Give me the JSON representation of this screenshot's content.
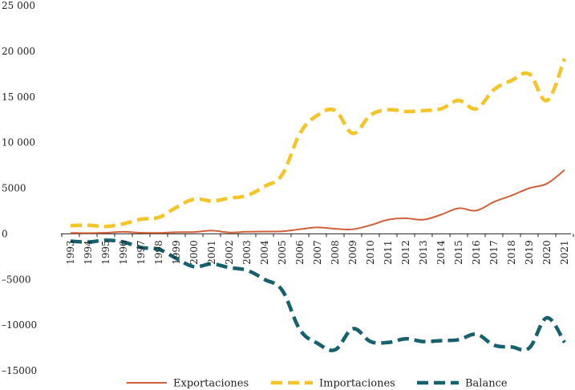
{
  "chart_data": {
    "type": "line",
    "title": "",
    "xlabel": "",
    "ylabel": "",
    "ylim": [
      -15000,
      25000
    ],
    "y_ticks": [
      -15000,
      -10000,
      -5000,
      0,
      5000,
      10000,
      15000,
      20000,
      25000
    ],
    "y_tick_labels": [
      "–15000",
      "–10000",
      "–5000",
      "0",
      "5000",
      "10 000",
      "15 000",
      "20 000",
      "25 000"
    ],
    "categories": [
      "1993",
      "1994",
      "1995",
      "1996",
      "1997",
      "1998",
      "1999",
      "2000",
      "2001",
      "2002",
      "2003",
      "2004",
      "2005",
      "2006",
      "2007",
      "2008",
      "2009",
      "2010",
      "2011",
      "2012",
      "2013",
      "2014",
      "2015",
      "2016",
      "2017",
      "2018",
      "2019",
      "2020",
      "2021"
    ],
    "legend_position": "bottom",
    "grid": false,
    "series": [
      {
        "name": "Exportaciones",
        "color": "#d0603a",
        "style": "solid",
        "values": [
          100,
          80,
          120,
          220,
          120,
          100,
          180,
          200,
          350,
          150,
          230,
          250,
          280,
          500,
          700,
          550,
          500,
          950,
          1550,
          1700,
          1550,
          2100,
          2800,
          2550,
          3500,
          4200,
          5000,
          5500,
          7000
        ]
      },
      {
        "name": "Importaciones",
        "color": "#f5c428",
        "style": "dashed",
        "values": [
          900,
          950,
          800,
          1100,
          1600,
          1800,
          2900,
          3800,
          3600,
          3900,
          4200,
          5200,
          6500,
          11000,
          13000,
          13500,
          11000,
          13000,
          13600,
          13400,
          13500,
          13700,
          14600,
          13700,
          15800,
          16800,
          17500,
          14600,
          19200
        ]
      },
      {
        "name": "Balance",
        "color": "#15616d",
        "style": "dashed",
        "values": [
          -800,
          -900,
          -700,
          -900,
          -1500,
          -1700,
          -2700,
          -3600,
          -3300,
          -3700,
          -4000,
          -5000,
          -6200,
          -10500,
          -12000,
          -12700,
          -10400,
          -11800,
          -11900,
          -11500,
          -11800,
          -11700,
          -11600,
          -11000,
          -12200,
          -12400,
          -12500,
          -9200,
          -11900
        ]
      }
    ]
  }
}
